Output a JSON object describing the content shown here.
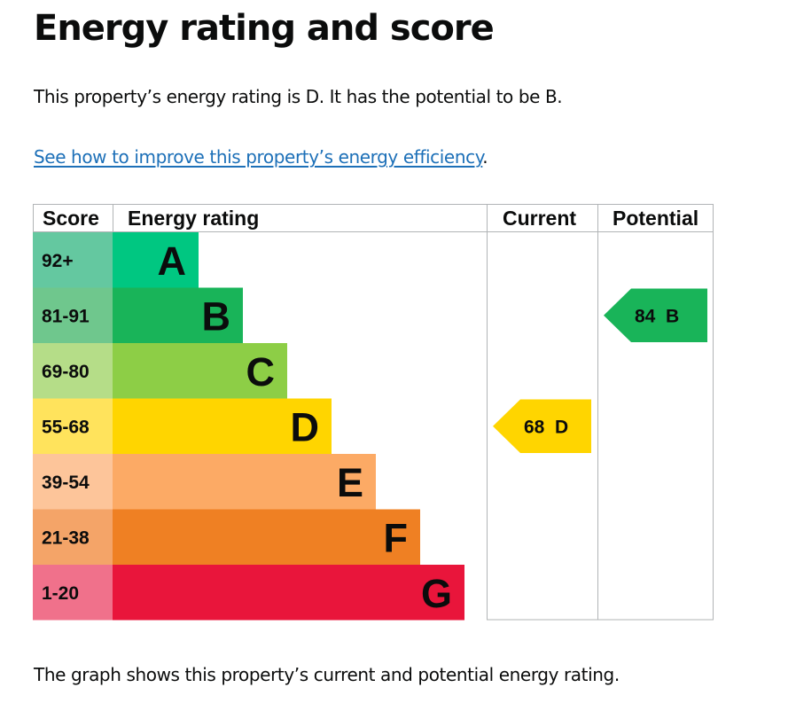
{
  "page": {
    "title": "Energy rating and score",
    "intro": "This property’s energy rating is D. It has the potential to be B.",
    "improve_link": "See how to improve this property’s energy efficiency",
    "improve_suffix": ".",
    "caption": "The graph shows this property’s current and potential energy rating."
  },
  "chart_data": {
    "type": "bar",
    "columns": [
      "Score",
      "Energy rating",
      "Current",
      "Potential"
    ],
    "bands": [
      {
        "rating": "A",
        "score": "92+",
        "color": "#00c781",
        "score_bg": "#64c8a0"
      },
      {
        "rating": "B",
        "score": "81-91",
        "color": "#19b459",
        "score_bg": "#6fc78d"
      },
      {
        "rating": "C",
        "score": "69-80",
        "color": "#8dce46",
        "score_bg": "#b5dd88"
      },
      {
        "rating": "D",
        "score": "55-68",
        "color": "#ffd500",
        "score_bg": "#ffe35c"
      },
      {
        "rating": "E",
        "score": "39-54",
        "color": "#fcaa65",
        "score_bg": "#fdc59a"
      },
      {
        "rating": "F",
        "score": "21-38",
        "color": "#ef8023",
        "score_bg": "#f4a468"
      },
      {
        "rating": "G",
        "score": "1-20",
        "color": "#e9153b",
        "score_bg": "#f0718b"
      }
    ],
    "current": {
      "score": 68,
      "rating": "D",
      "color": "#ffd500"
    },
    "potential": {
      "score": 84,
      "rating": "B",
      "color": "#19b459"
    }
  }
}
